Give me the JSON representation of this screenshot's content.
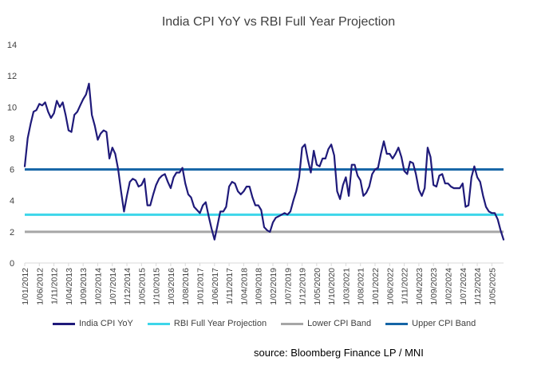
{
  "chart_data": {
    "type": "line",
    "title": "India CPI YoY vs RBI Full Year Projection",
    "source": "source: Bloomberg Finance LP / MNI",
    "ylim": [
      0,
      14
    ],
    "yticks": [
      0,
      2,
      4,
      6,
      8,
      10,
      12,
      14
    ],
    "grid": false,
    "legend_position": "bottom",
    "xticks": [
      "1/01/2012",
      "1/06/2012",
      "1/11/2012",
      "1/04/2013",
      "1/09/2013",
      "1/02/2014",
      "1/07/2014",
      "1/12/2014",
      "1/05/2015",
      "1/10/2015",
      "1/03/2016",
      "1/08/2016",
      "1/01/2017",
      "1/06/2017",
      "1/11/2017",
      "1/04/2018",
      "1/09/2018",
      "1/02/2019",
      "1/07/2019",
      "1/12/2019",
      "1/05/2020",
      "1/10/2020",
      "1/03/2021",
      "1/08/2021",
      "1/01/2022",
      "1/06/2022",
      "1/11/2022",
      "1/04/2023",
      "1/09/2023",
      "1/02/2024",
      "1/07/2024",
      "1/12/2024",
      "1/05/2025"
    ],
    "series": [
      {
        "name": "India CPI YoY",
        "color": "#1f1a7a",
        "start": "2012-01",
        "frequency": "monthly",
        "values": [
          6.2,
          8.0,
          8.9,
          9.7,
          9.8,
          10.2,
          10.1,
          10.3,
          9.7,
          9.3,
          9.6,
          10.4,
          10.0,
          10.3,
          9.5,
          8.5,
          8.4,
          9.5,
          9.7,
          10.1,
          10.5,
          10.8,
          11.5,
          9.5,
          8.8,
          7.9,
          8.3,
          8.5,
          8.4,
          6.7,
          7.4,
          7.0,
          6.0,
          4.6,
          3.3,
          4.3,
          5.2,
          5.4,
          5.3,
          4.9,
          5.0,
          5.4,
          3.7,
          3.7,
          4.4,
          5.0,
          5.4,
          5.6,
          5.7,
          5.2,
          4.8,
          5.5,
          5.8,
          5.8,
          6.1,
          5.1,
          4.4,
          4.2,
          3.6,
          3.4,
          3.2,
          3.7,
          3.9,
          3.0,
          2.2,
          1.5,
          2.4,
          3.3,
          3.3,
          3.6,
          4.9,
          5.2,
          5.1,
          4.6,
          4.4,
          4.6,
          4.9,
          4.9,
          4.2,
          3.7,
          3.7,
          3.4,
          2.3,
          2.1,
          2.0,
          2.6,
          2.9,
          3.0,
          3.1,
          3.2,
          3.1,
          3.3,
          4.0,
          4.6,
          5.5,
          7.4,
          7.6,
          6.6,
          5.8,
          7.2,
          6.3,
          6.2,
          6.7,
          6.7,
          7.3,
          7.6,
          6.9,
          4.6,
          4.1,
          5.0,
          5.5,
          4.3,
          6.3,
          6.3,
          5.6,
          5.3,
          4.3,
          4.5,
          4.9,
          5.7,
          6.0,
          6.1,
          7.0,
          7.8,
          7.0,
          7.0,
          6.7,
          7.0,
          7.4,
          6.8,
          5.9,
          5.7,
          6.5,
          6.4,
          5.7,
          4.7,
          4.3,
          4.8,
          7.4,
          6.8,
          5.0,
          4.9,
          5.6,
          5.7,
          5.1,
          5.1,
          4.9,
          4.8,
          4.8,
          4.8,
          5.1,
          3.6,
          3.7,
          5.5,
          6.2,
          5.5,
          5.2,
          4.3,
          3.6,
          3.3,
          3.2,
          3.2,
          2.8,
          2.1,
          1.5
        ]
      },
      {
        "name": "RBI Full Year Projection",
        "color": "#3dd6ea",
        "constant": 3.1
      },
      {
        "name": "Lower CPI Band",
        "color": "#a6a6a6",
        "constant": 2.0
      },
      {
        "name": "Upper CPI Band",
        "color": "#1565a6",
        "constant": 6.0
      }
    ]
  }
}
